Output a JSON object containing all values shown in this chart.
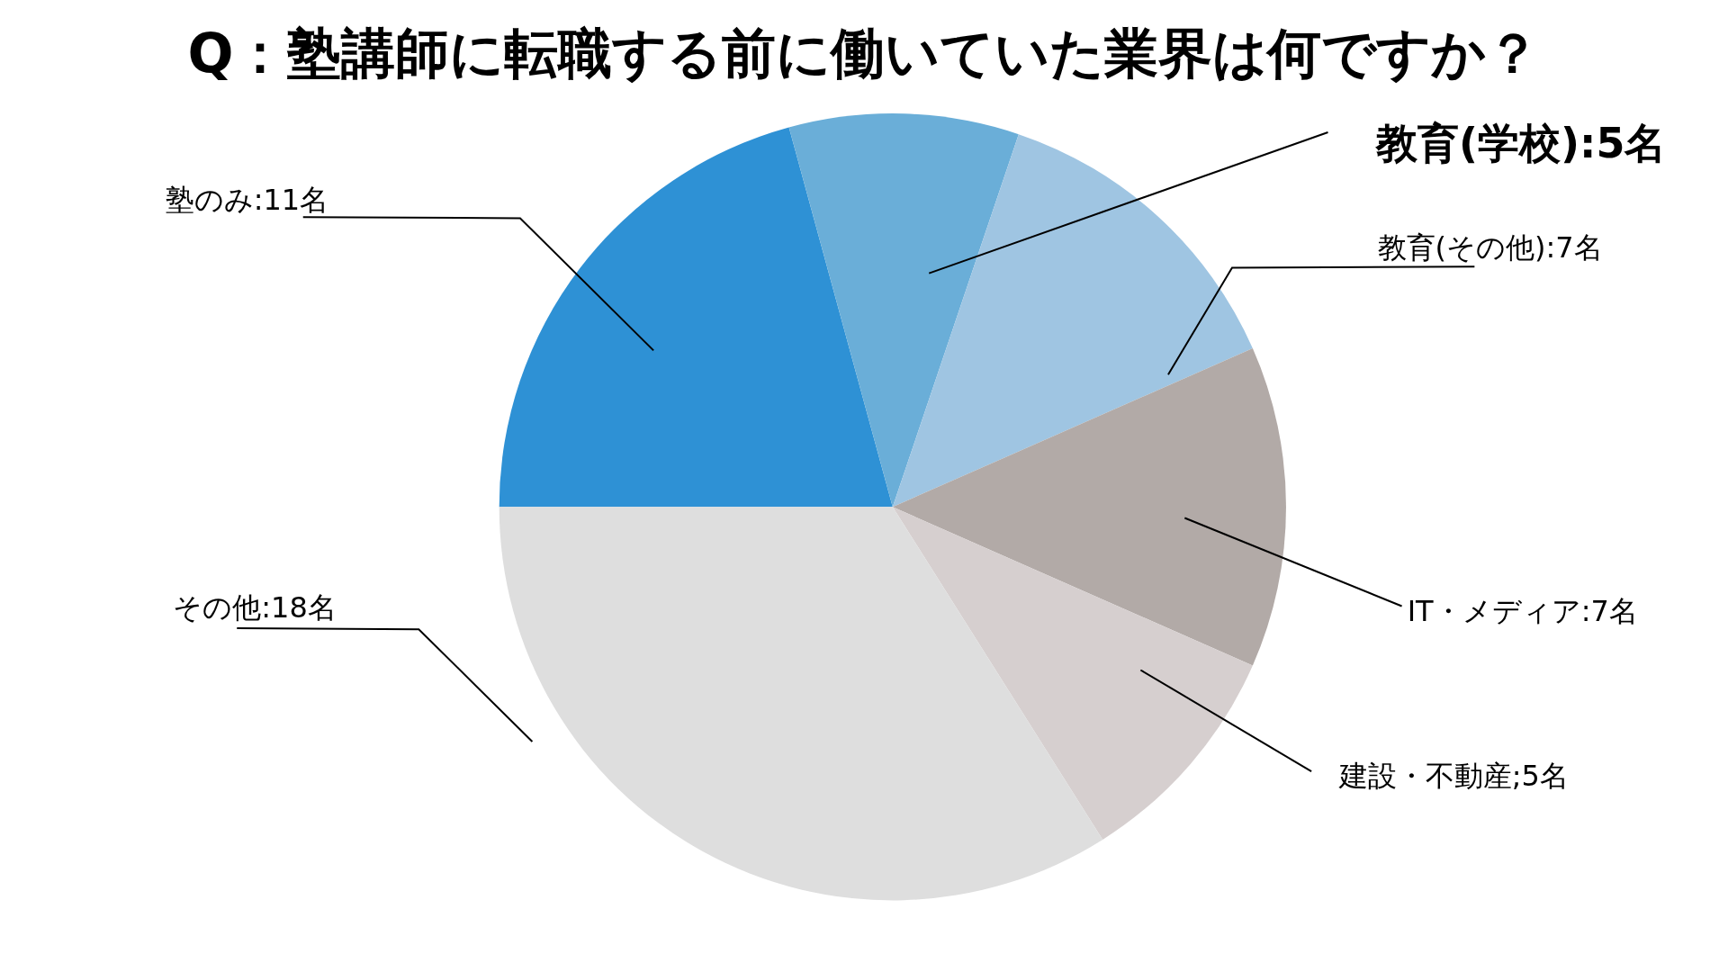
{
  "chart_data": {
    "type": "pie",
    "title": "Q：塾講師に転職する前に働いていた業界は何ですか？",
    "categories": [
      "塾のみ:11名",
      "教育(学校):5名",
      "教育(その他):7名",
      "IT・メディア:7名",
      "建設・不動産;5名",
      "その他:18名"
    ],
    "values": [
      11,
      5,
      7,
      7,
      5,
      18
    ],
    "colors": [
      "#2e91d5",
      "#6aaed8",
      "#9fc5e2",
      "#b2aaa7",
      "#d6cfcf",
      "#dedede"
    ],
    "legend": false
  }
}
